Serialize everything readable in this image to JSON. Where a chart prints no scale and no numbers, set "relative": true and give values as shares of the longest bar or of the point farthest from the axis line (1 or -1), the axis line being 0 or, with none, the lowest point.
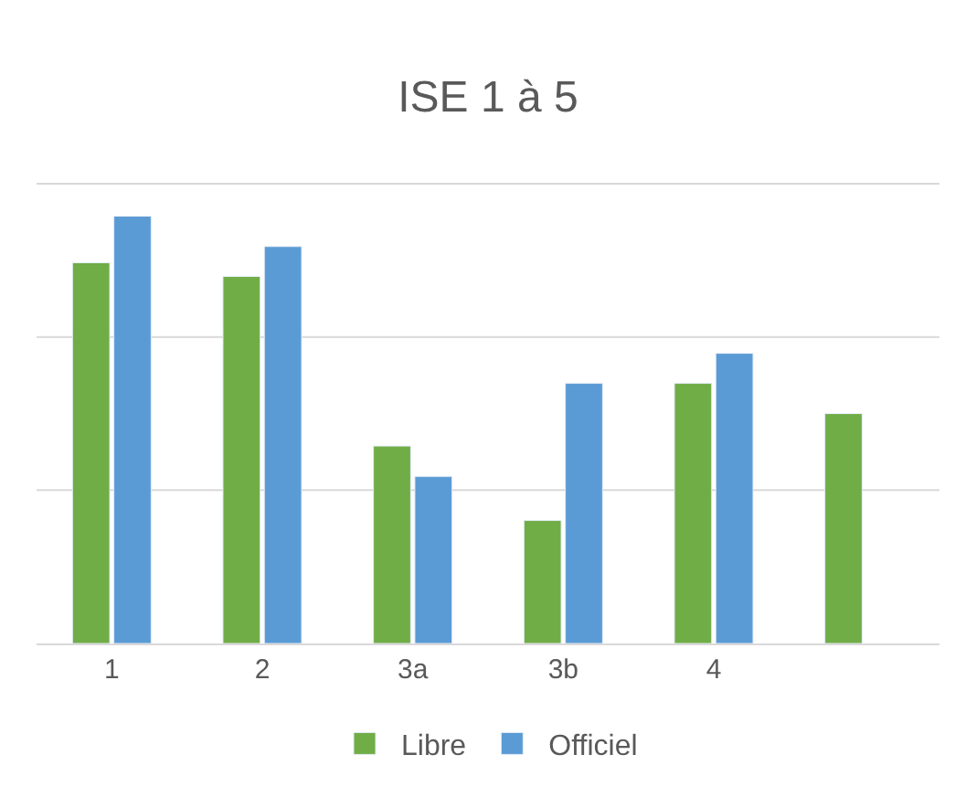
{
  "chart_data": {
    "type": "bar",
    "title": "ISE 1 à 5",
    "relative": true,
    "legend": "bottom",
    "ref_lines": [
      {
        "axis": "y",
        "value": 0.359,
        "color": "#d9d9d9"
      },
      {
        "axis": "y",
        "value": 0.717,
        "color": "#d9d9d9"
      },
      {
        "axis": "y",
        "value": 1.076,
        "color": "#d9d9d9"
      }
    ],
    "categories": [
      "1",
      "2",
      "3a",
      "3b",
      "4",
      null
    ],
    "series": [
      {
        "name": "Libre",
        "color": "#70ad47",
        "values": [
          0.891,
          0.859,
          0.462,
          0.288,
          0.609,
          0.538
        ]
      },
      {
        "name": "Officiel",
        "color": "#5b9bd5",
        "values": [
          1,
          0.929,
          0.391,
          0.609,
          0.679,
          null
        ]
      }
    ]
  }
}
